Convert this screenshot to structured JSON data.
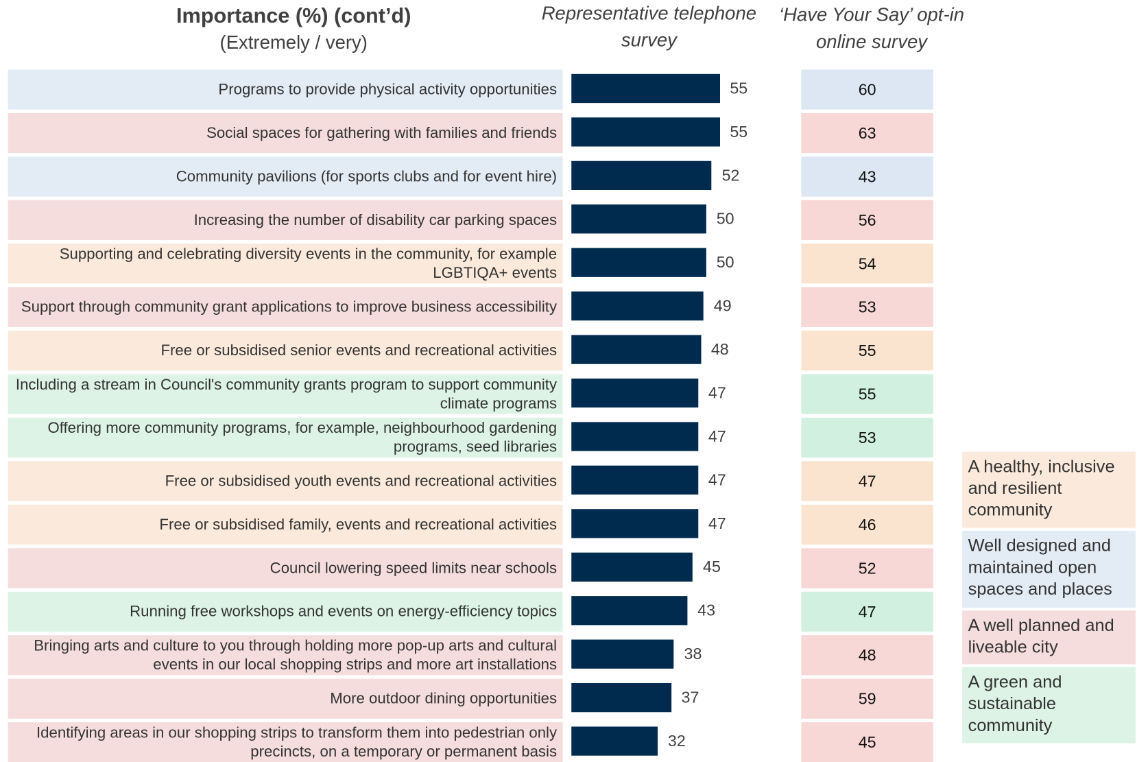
{
  "chart_data": {
    "type": "bar",
    "title": "Importance (%) (cont’d)",
    "subtitle": "(Extremely / very)",
    "categories": [
      "Programs to provide physical activity opportunities",
      "Social spaces for gathering with families and friends",
      "Community pavilions (for sports clubs and for event hire)",
      "Increasing the number of disability car parking spaces",
      "Supporting and celebrating diversity events in the community, for example LGBTIQA+ events",
      "Support through community grant applications to improve business accessibility",
      "Free or subsidised senior events and recreational activities",
      "Including a stream in Council's community grants program to support community climate programs",
      "Offering more community programs, for example, neighbourhood gardening programs, seed libraries",
      "Free or subsidised youth events and recreational activities",
      "Free or subsidised family, events and recreational activities",
      "Council lowering speed limits near schools",
      "Running free workshops and events on energy-efficiency topics",
      "Bringing arts and culture to you through holding more pop-up arts and cultural events in our local shopping strips and more art installations",
      "More outdoor dining opportunities",
      "Identifying areas in our shopping strips to transform them into pedestrian only precincts, on a temporary or permanent basis"
    ],
    "series": [
      {
        "name": "Representative telephone survey",
        "color": "#002b4f",
        "values": [
          55,
          55,
          52,
          50,
          50,
          49,
          48,
          47,
          47,
          47,
          47,
          45,
          43,
          38,
          37,
          32
        ]
      },
      {
        "name": "‘Have Your Say’ opt-in online survey",
        "values": [
          60,
          63,
          43,
          56,
          54,
          53,
          55,
          55,
          53,
          47,
          46,
          52,
          47,
          48,
          59,
          45
        ]
      }
    ],
    "themes": [
      {
        "name": "A healthy, inclusive and resilient community",
        "color": "#fbeadb"
      },
      {
        "name": "Well designed and maintained open spaces and places",
        "color": "#e3ebf4"
      },
      {
        "name": "A well planned and liveable city",
        "color": "#f5dddd"
      },
      {
        "name": "A green and sustainable community",
        "color": "#dcf3e6"
      }
    ],
    "row_themes": [
      "Well designed and maintained open spaces and places",
      "A well planned and liveable city",
      "Well designed and maintained open spaces and places",
      "A well planned and liveable city",
      "A healthy, inclusive and resilient community",
      "A well planned and liveable city",
      "A healthy, inclusive and resilient community",
      "A green and sustainable community",
      "A green and sustainable community",
      "A healthy, inclusive and resilient community",
      "A healthy, inclusive and resilient community",
      "A well planned and liveable city",
      "A green and sustainable community",
      "A well planned and liveable city",
      "A well planned and liveable city",
      "A well planned and liveable city"
    ]
  }
}
